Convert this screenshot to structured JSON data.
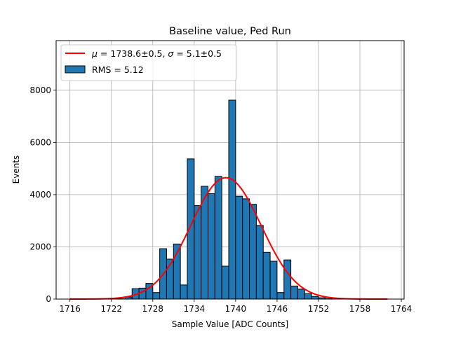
{
  "chart_data": {
    "type": "bar",
    "title": "Baseline value, Ped Run",
    "xlabel": "Sample Value [ADC Counts]",
    "ylabel": "Events",
    "xlim": [
      1714,
      1764.4
    ],
    "ylim": [
      0,
      9900
    ],
    "xticks": [
      1716,
      1722,
      1728,
      1734,
      1740,
      1746,
      1752,
      1758,
      1764
    ],
    "yticks": [
      0,
      2000,
      4000,
      6000,
      8000
    ],
    "grid": true,
    "legend_position": "top-left",
    "bin_width": 1,
    "bins": {
      "x_start": [
        1723,
        1724,
        1725,
        1726,
        1727,
        1728,
        1729,
        1730,
        1731,
        1732,
        1733,
        1734,
        1735,
        1736,
        1737,
        1738,
        1739,
        1740,
        1741,
        1742,
        1743,
        1744,
        1745,
        1746,
        1747,
        1748,
        1749,
        1750,
        1751,
        1752,
        1753
      ],
      "counts": [
        10,
        80,
        400,
        420,
        600,
        250,
        1930,
        1530,
        2110,
        540,
        5370,
        3580,
        4320,
        4040,
        4700,
        1260,
        7620,
        3940,
        3840,
        3630,
        2820,
        1790,
        1450,
        250,
        1500,
        500,
        380,
        210,
        100,
        50,
        15
      ]
    },
    "fit": {
      "type": "gaussian",
      "mu": 1738.6,
      "sigma": 5.1,
      "amplitude": 4650,
      "x_range": [
        1716,
        1762
      ],
      "color": "#ff0000"
    },
    "series": [
      {
        "name": "$\\mu = 1738.6\\pm0.5$, $\\sigma = 5.1\\pm0.5$",
        "type": "line",
        "color": "#ff0000"
      },
      {
        "name": "RMS = 5.12",
        "type": "bar",
        "color": "#1f77b4"
      }
    ],
    "legend": {
      "fit_label": {
        "mu_sym": "μ",
        "mu_text": " = 1738.6±0.5, ",
        "sigma_sym": "σ",
        "sigma_text": " = 5.1±0.5"
      },
      "hist_label": "RMS = 5.12"
    }
  }
}
